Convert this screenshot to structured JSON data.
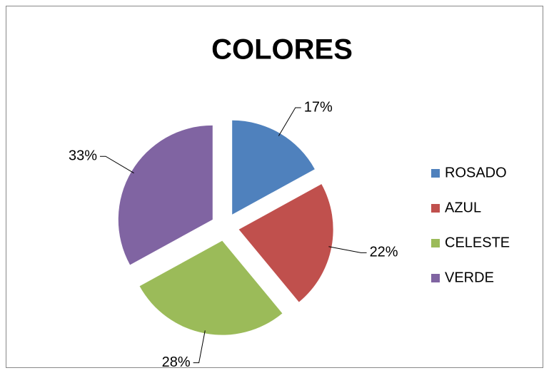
{
  "chart_data": {
    "type": "pie",
    "title": "COLORES",
    "categories": [
      "ROSADO",
      "AZUL",
      "CELESTE",
      "VERDE"
    ],
    "values": [
      17,
      22,
      28,
      33
    ],
    "value_labels": [
      "17%",
      "22%",
      "28%",
      "33%"
    ],
    "colors": [
      "#4f81bd",
      "#c0504d",
      "#9bbb59",
      "#8064a2"
    ],
    "legend": "right"
  }
}
